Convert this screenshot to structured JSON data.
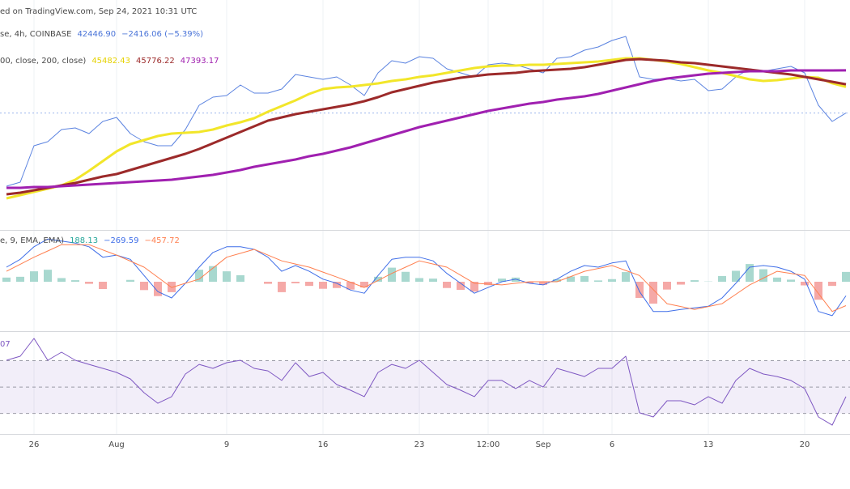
{
  "header": "ed on TradingView.com, Sep 24, 2021 10:31 UTC",
  "chart_data": [
    {
      "type": "line",
      "legend": [
        {
          "text": "se, 4h, COINBASE",
          "values": [
            {
              "text": "42446.90",
              "color": "#4a74d8"
            },
            {
              "text": "−2416.06 (−5.39%)",
              "color": "#4a74d8"
            }
          ]
        },
        {
          "text": "00, close, 200, close)",
          "values": [
            {
              "text": "45482.43",
              "color": "#e6d200"
            },
            {
              "text": "45776.22",
              "color": "#9c2a2a"
            },
            {
              "text": "47393.17",
              "color": "#a020b0"
            }
          ]
        }
      ],
      "ylim": [
        30000,
        55000
      ],
      "series": [
        {
          "color": "#5b83e0",
          "width": 1,
          "last_value_line": true,
          "values": [
            33948,
            34418,
            38648,
            39118,
            40528,
            40716,
            40058,
            41468,
            41938,
            40058,
            39118,
            38648,
            38648,
            40528,
            43348,
            44288,
            44476,
            45698,
            44758,
            44758,
            45228,
            46920,
            46638,
            46356,
            46638,
            45698,
            44476,
            47108,
            48518,
            48236,
            48988,
            48800,
            47578,
            47108,
            46638,
            48048,
            48236,
            48048,
            47578,
            47108,
            48800,
            48988,
            49740,
            50116,
            50868,
            51338,
            46638,
            46356,
            46450,
            46168,
            46356,
            45040,
            45228,
            46638,
            47578,
            47296,
            47578,
            47860,
            47108,
            43348,
            41468,
            42446.9
          ]
        },
        {
          "color": "#f2e62a",
          "width": 3,
          "values": [
            32538,
            32914,
            33290,
            33666,
            34042,
            34700,
            35734,
            36862,
            37990,
            38836,
            39306,
            39776,
            40058,
            40152,
            40246,
            40528,
            40998,
            41374,
            41844,
            42596,
            43254,
            43912,
            44664,
            45228,
            45416,
            45510,
            45698,
            45886,
            46168,
            46356,
            46638,
            46826,
            47108,
            47390,
            47672,
            47860,
            47954,
            47954,
            48048,
            48048,
            48142,
            48236,
            48330,
            48424,
            48612,
            48800,
            48800,
            48612,
            48424,
            48142,
            47766,
            47390,
            47108,
            46732,
            46356,
            46168,
            46262,
            46450,
            46638,
            46544,
            45900,
            45482.43
          ]
        },
        {
          "color": "#9c2a2a",
          "width": 3,
          "values": [
            33008,
            33196,
            33478,
            33760,
            34042,
            34324,
            34700,
            35076,
            35358,
            35828,
            36298,
            36768,
            37238,
            37708,
            38272,
            38930,
            39588,
            40246,
            40904,
            41562,
            41938,
            42314,
            42596,
            42878,
            43160,
            43442,
            43818,
            44288,
            44852,
            45228,
            45604,
            45980,
            46262,
            46544,
            46732,
            46920,
            47014,
            47108,
            47296,
            47390,
            47484,
            47578,
            47766,
            48048,
            48330,
            48612,
            48706,
            48612,
            48518,
            48330,
            48236,
            48048,
            47860,
            47672,
            47484,
            47296,
            47108,
            46920,
            46638,
            46356,
            46074,
            45776.22
          ]
        },
        {
          "color": "#a020b0",
          "width": 3,
          "values": [
            33760,
            33760,
            33854,
            33854,
            33948,
            34042,
            34136,
            34230,
            34324,
            34418,
            34512,
            34606,
            34700,
            34888,
            35076,
            35264,
            35546,
            35828,
            36204,
            36486,
            36768,
            37050,
            37426,
            37708,
            38084,
            38460,
            38930,
            39400,
            39870,
            40340,
            40810,
            41186,
            41562,
            41938,
            42314,
            42690,
            42972,
            43254,
            43536,
            43724,
            44006,
            44194,
            44382,
            44664,
            45040,
            45416,
            45792,
            46168,
            46450,
            46638,
            46826,
            47014,
            47108,
            47202,
            47296,
            47296,
            47296,
            47390,
            47390,
            47390,
            47390,
            47393.17
          ]
        }
      ]
    },
    {
      "type": "line",
      "legend": [
        {
          "text": "e, 9, EMA, EMA)",
          "values": [
            {
              "text": "188.13",
              "color": "#26a69a"
            },
            {
              "text": "−269.59",
              "color": "#3f6ee8"
            },
            {
              "text": "−457.72",
              "color": "#ff7f4f"
            }
          ]
        }
      ],
      "ylim": [
        -900,
        900
      ],
      "histogram": {
        "positive": "#a8d8cf",
        "negative": "#f5a9a7"
      },
      "series": [
        {
          "color": "#3f6ee8",
          "width": 1,
          "values": [
            280,
            430,
            670,
            820,
            780,
            740,
            670,
            470,
            510,
            430,
            120,
            -190,
            -310,
            -30,
            280,
            560,
            670,
            670,
            620,
            470,
            200,
            310,
            200,
            50,
            -30,
            -160,
            -220,
            120,
            430,
            470,
            470,
            400,
            160,
            -30,
            -220,
            -110,
            0,
            50,
            -30,
            -60,
            50,
            200,
            310,
            280,
            360,
            400,
            -190,
            -570,
            -570,
            -530,
            -500,
            -470,
            -310,
            -30,
            280,
            310,
            280,
            200,
            50,
            -570,
            -650,
            -269.59
          ]
        },
        {
          "color": "#ff7f4f",
          "width": 1,
          "values": [
            200,
            335,
            470,
            590,
            710,
            710,
            710,
            610,
            510,
            395,
            280,
            85,
            -110,
            -30,
            50,
            260,
            470,
            545,
            620,
            510,
            400,
            340,
            280,
            185,
            90,
            -10,
            -110,
            25,
            160,
            280,
            400,
            340,
            280,
            125,
            -30,
            -45,
            -60,
            -30,
            0,
            0,
            0,
            100,
            200,
            255,
            310,
            215,
            120,
            -150,
            -420,
            -475,
            -530,
            -475,
            -420,
            -240,
            -60,
            70,
            200,
            160,
            120,
            -225,
            -570,
            -457.72
          ]
        }
      ]
    },
    {
      "type": "line",
      "legend": [
        {
          "values": [
            {
              "text": "07",
              "color": "#7e57c2"
            }
          ]
        }
      ],
      "ylim": [
        15,
        90
      ],
      "hlines": [
        70,
        50,
        30
      ],
      "band_color": "rgba(126,87,194,0.1)",
      "categories": [
        null,
        null,
        "26",
        null,
        null,
        null,
        null,
        null,
        "Aug",
        null,
        null,
        null,
        null,
        null,
        null,
        null,
        "9",
        null,
        null,
        null,
        null,
        null,
        null,
        "16",
        null,
        null,
        null,
        null,
        null,
        null,
        "23",
        null,
        null,
        null,
        null,
        "12:00",
        null,
        null,
        null,
        "Sep",
        null,
        null,
        null,
        null,
        "6",
        null,
        null,
        null,
        null,
        null,
        null,
        "13",
        null,
        null,
        null,
        null,
        null,
        null,
        "20",
        null,
        null,
        null
      ],
      "series": [
        {
          "color": "#7e57c2",
          "width": 1,
          "values": [
            70.3,
            73.4,
            86.9,
            70.3,
            76.5,
            70.3,
            67.2,
            64.2,
            61.1,
            56.2,
            45.7,
            37.7,
            42.7,
            59.9,
            67.2,
            64.2,
            68.5,
            70.3,
            64.2,
            62.3,
            55,
            68.5,
            58,
            61.1,
            51.9,
            47.6,
            42.7,
            61.1,
            67.2,
            64.2,
            70.3,
            61.1,
            51.9,
            47.6,
            42.7,
            55,
            55,
            48.8,
            55,
            50,
            64.2,
            61.1,
            58,
            64.2,
            64.2,
            73.4,
            30.4,
            27.3,
            39.6,
            39.6,
            36.5,
            42.7,
            37.7,
            55,
            64.2,
            59.9,
            58,
            55,
            48.8,
            27.3,
            21.1,
            42.7
          ]
        }
      ]
    }
  ]
}
